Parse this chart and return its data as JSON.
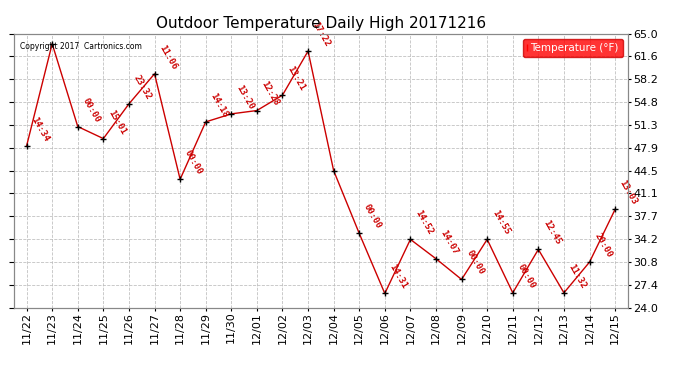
{
  "title": "Outdoor Temperature Daily High 20171216",
  "copyright_text": "Copyright 2017  Cartronics.com",
  "background_color": "#ffffff",
  "line_color": "#cc0000",
  "marker_color": "#000000",
  "grid_color": "#bbbbbb",
  "ylim": [
    24.0,
    65.0
  ],
  "yticks": [
    24.0,
    27.4,
    30.8,
    34.2,
    37.7,
    41.1,
    44.5,
    47.9,
    51.3,
    54.8,
    58.2,
    61.6,
    65.0
  ],
  "x_labels": [
    "11/22",
    "11/23",
    "11/24",
    "11/25",
    "11/26",
    "11/27",
    "11/28",
    "11/29",
    "11/30",
    "12/01",
    "12/02",
    "12/03",
    "12/04",
    "12/05",
    "12/06",
    "12/07",
    "12/08",
    "12/09",
    "12/10",
    "12/11",
    "12/12",
    "12/13",
    "12/14",
    "12/15"
  ],
  "y_values": [
    48.2,
    63.5,
    51.1,
    49.3,
    54.5,
    59.0,
    43.2,
    51.8,
    53.0,
    53.5,
    55.8,
    62.4,
    44.5,
    35.1,
    26.1,
    34.2,
    31.3,
    28.2,
    34.2,
    26.2,
    32.7,
    26.2,
    30.8,
    38.7
  ],
  "ann_labels": [
    "14:34",
    "00:00",
    "15:01",
    "23:32",
    "11:06",
    "00:00",
    "14:18",
    "13:20",
    "12:28",
    "13:21",
    "17:22",
    "00:00",
    "14:31",
    "14:52",
    "14:07",
    "00:00",
    "14:55",
    "00:00",
    "12:45",
    "11:32",
    "20:00",
    "13:03"
  ],
  "ann_x": [
    0,
    2,
    3,
    4,
    5,
    6,
    7,
    8,
    9,
    10,
    11,
    13,
    14,
    15,
    16,
    17,
    18,
    19,
    20,
    21,
    22,
    23
  ],
  "legend_label": "Temperature (°F)",
  "legend_bg": "#ff0000",
  "legend_text_color": "#ffffff",
  "title_fontsize": 11,
  "tick_fontsize": 8,
  "ann_fontsize": 6.5
}
